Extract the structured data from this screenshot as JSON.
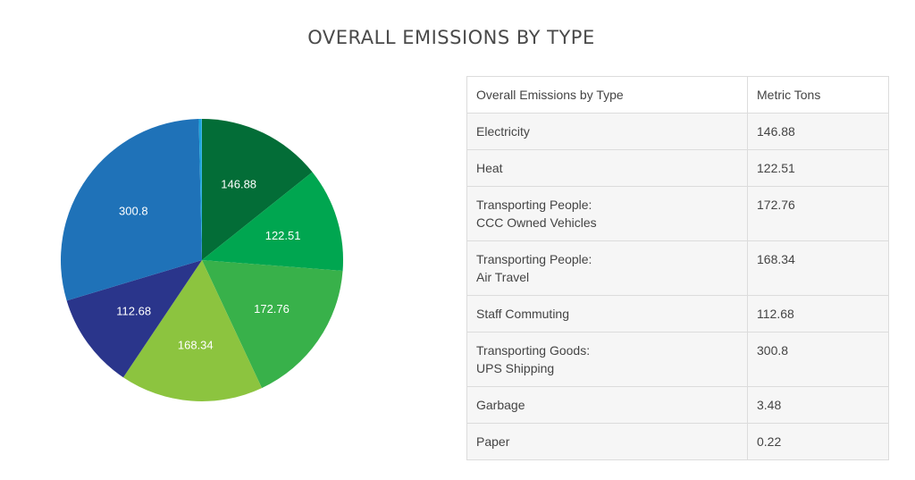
{
  "chart_data": {
    "type": "pie",
    "title": "OVERALL EMISSIONS BY TYPE",
    "slices": [
      {
        "category": "Electricity",
        "value": 146.88,
        "color": "#036d37",
        "label": "146.88"
      },
      {
        "category": "Heat",
        "value": 122.51,
        "color": "#00a650",
        "label": "122.51"
      },
      {
        "category": "Transporting People: CCC Owned Vehicles",
        "value": 172.76,
        "color": "#38b14a",
        "label": "172.76"
      },
      {
        "category": "Transporting People: Air Travel",
        "value": 168.34,
        "color": "#8cc43f",
        "label": "168.34"
      },
      {
        "category": "Staff Commuting",
        "value": 112.68,
        "color": "#2a358b",
        "label": "112.68"
      },
      {
        "category": "Transporting Goods: UPS Shipping",
        "value": 300.8,
        "color": "#1f72b8",
        "label": "300.8"
      },
      {
        "category": "Garbage",
        "value": 3.48,
        "color": "#1ba4dc",
        "label": ""
      },
      {
        "category": "Paper",
        "value": 0.22,
        "color": "#6fc5ea",
        "label": ""
      }
    ]
  },
  "table": {
    "headers": [
      "Overall Emissions by Type",
      "Metric Tons"
    ],
    "rows": [
      {
        "type": [
          "Electricity"
        ],
        "tons": "146.88"
      },
      {
        "type": [
          "Heat"
        ],
        "tons": "122.51"
      },
      {
        "type": [
          "Transporting People:",
          "CCC Owned Vehicles"
        ],
        "tons": "172.76"
      },
      {
        "type": [
          "Transporting People:",
          "Air Travel"
        ],
        "tons": "168.34"
      },
      {
        "type": [
          "Staff Commuting"
        ],
        "tons": "112.68"
      },
      {
        "type": [
          "Transporting Goods:",
          "UPS Shipping"
        ],
        "tons": "300.8"
      },
      {
        "type": [
          "Garbage"
        ],
        "tons": "3.48"
      },
      {
        "type": [
          "Paper"
        ],
        "tons": "0.22"
      }
    ]
  }
}
